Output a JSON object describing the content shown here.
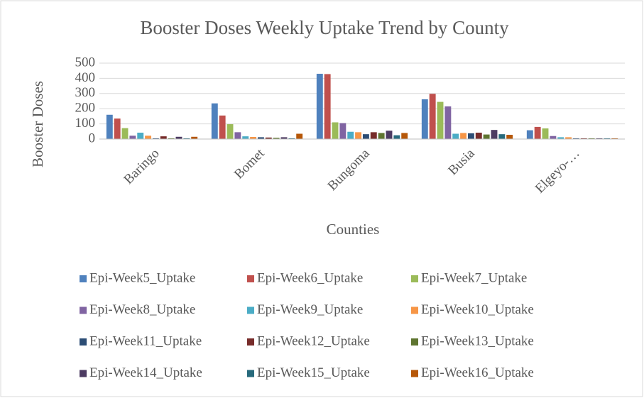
{
  "chart_data": {
    "type": "bar",
    "title": "Booster Doses Weekly Uptake Trend by County",
    "x_label": "Counties",
    "y_label": "Booster Doses",
    "categories": [
      "Baringo",
      "Bomet",
      "Bungoma",
      "Busia",
      "Elgeyo-…"
    ],
    "series": [
      {
        "name": "Epi-Week5_Uptake",
        "color": "#4f81bd",
        "values": [
          160,
          235,
          430,
          262,
          58
        ]
      },
      {
        "name": "Epi-Week6_Uptake",
        "color": "#c0504d",
        "values": [
          135,
          155,
          428,
          298,
          80
        ]
      },
      {
        "name": "Epi-Week7_Uptake",
        "color": "#9bbb59",
        "values": [
          72,
          98,
          110,
          245,
          70
        ]
      },
      {
        "name": "Epi-Week8_Uptake",
        "color": "#8064a2",
        "values": [
          22,
          45,
          105,
          215,
          20
        ]
      },
      {
        "name": "Epi-Week9_Uptake",
        "color": "#4bacc6",
        "values": [
          42,
          18,
          48,
          35,
          12
        ]
      },
      {
        "name": "Epi-Week10_Uptake",
        "color": "#f79646",
        "values": [
          22,
          14,
          45,
          40,
          12
        ]
      },
      {
        "name": "Epi-Week11_Uptake",
        "color": "#2c4d75",
        "values": [
          5,
          12,
          32,
          38,
          5
        ]
      },
      {
        "name": "Epi-Week12_Uptake",
        "color": "#772c2a",
        "values": [
          18,
          10,
          45,
          42,
          5
        ]
      },
      {
        "name": "Epi-Week13_Uptake",
        "color": "#5f7530",
        "values": [
          5,
          8,
          40,
          30,
          5
        ]
      },
      {
        "name": "Epi-Week14_Uptake",
        "color": "#4d3b62",
        "values": [
          15,
          12,
          55,
          60,
          5
        ]
      },
      {
        "name": "Epi-Week15_Uptake",
        "color": "#276a7c",
        "values": [
          5,
          5,
          25,
          32,
          5
        ]
      },
      {
        "name": "Epi-Week16_Uptake",
        "color": "#b65708",
        "values": [
          15,
          35,
          40,
          28,
          5
        ]
      }
    ],
    "ylim": [
      0,
      500
    ],
    "yticks": [
      0,
      100,
      200,
      300,
      400,
      500
    ],
    "grid": true,
    "legend": "bottom"
  }
}
